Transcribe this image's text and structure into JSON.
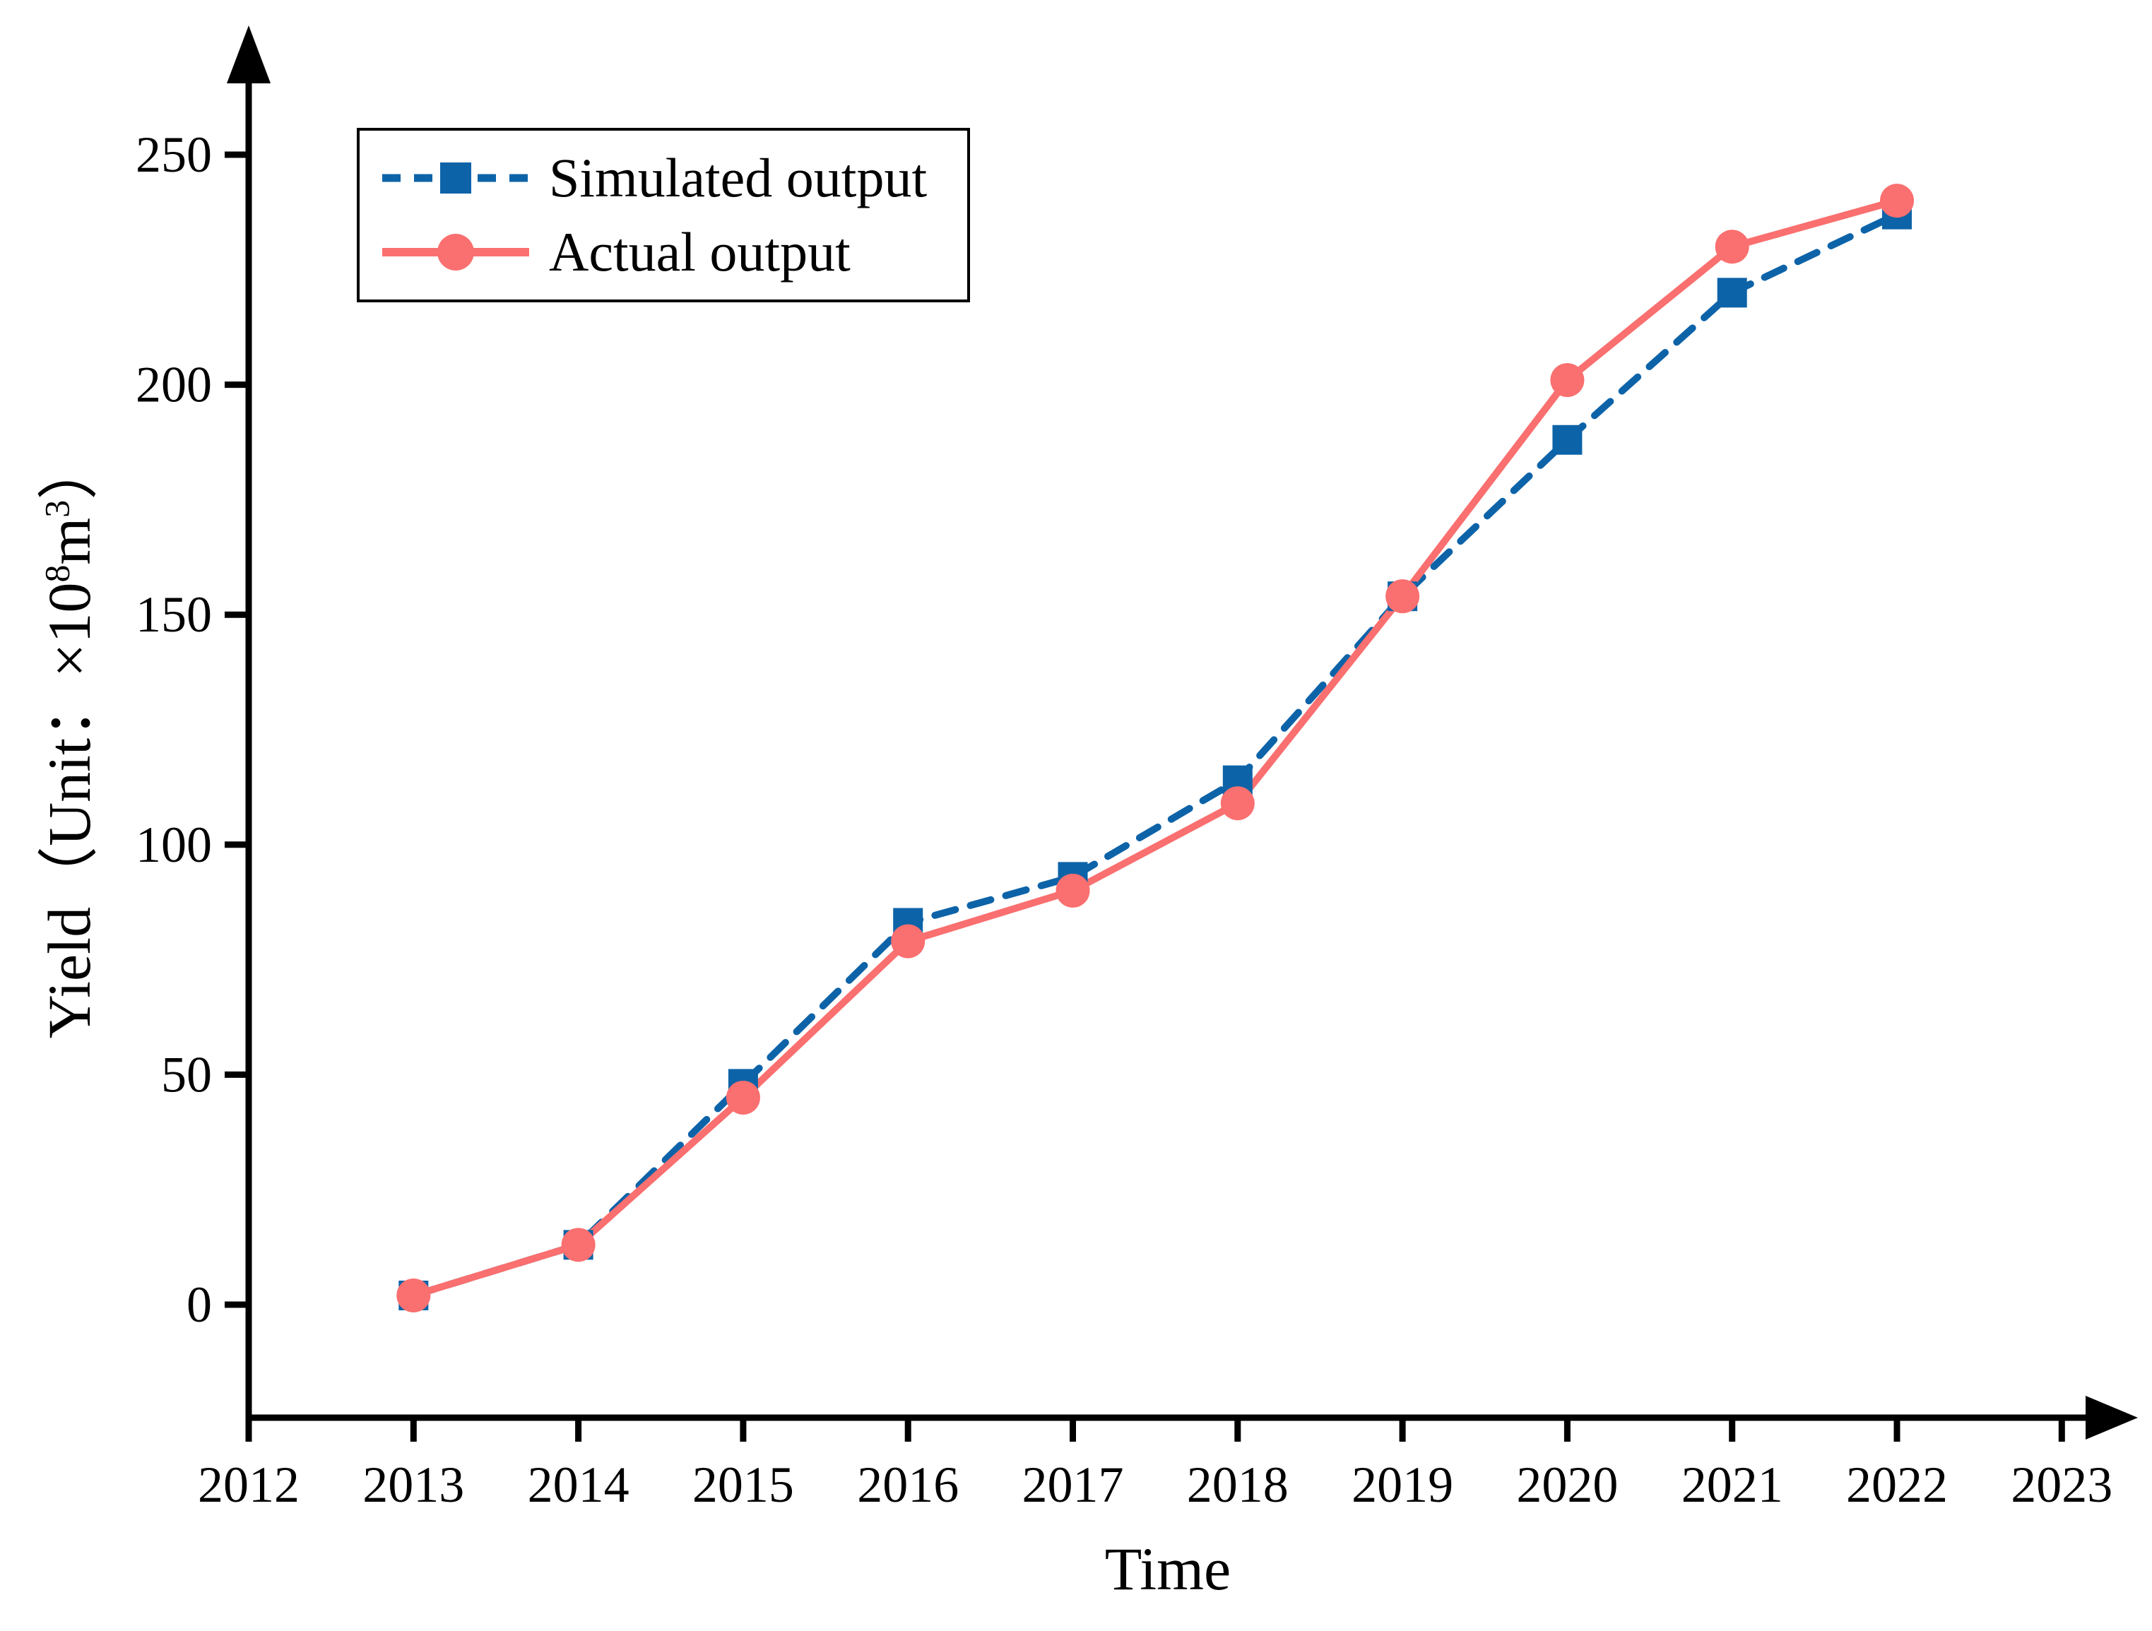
{
  "chart_data": {
    "type": "line",
    "title": "",
    "xlabel": "Time",
    "ylabel": "Yield（Unit：×10⁸m³）",
    "ylabel_parts": {
      "prefix": "Yield（Unit：×10",
      "sup1": "8",
      "mid": "m",
      "sup2": "3",
      "suffix": "）"
    },
    "x": [
      2013,
      2014,
      2015,
      2016,
      2017,
      2018,
      2019,
      2020,
      2021,
      2022
    ],
    "series": [
      {
        "name": "Simulated output",
        "color": "#0d63a8",
        "line_style": "dashed",
        "marker": "square",
        "values": [
          2,
          13,
          48,
          83,
          93,
          114,
          154,
          188,
          220,
          237
        ]
      },
      {
        "name": "Actual output",
        "color": "#fa6f6f",
        "line_style": "solid",
        "marker": "circle",
        "values": [
          2,
          13,
          45,
          79,
          90,
          109,
          154,
          201,
          230,
          240
        ]
      }
    ],
    "x_ticks": [
      2012,
      2013,
      2014,
      2015,
      2016,
      2017,
      2018,
      2019,
      2020,
      2021,
      2022,
      2023
    ],
    "y_ticks": [
      0,
      50,
      100,
      150,
      200,
      250
    ],
    "xlim": [
      2012,
      2023
    ],
    "ylim": [
      0,
      250
    ],
    "grid": false,
    "legend_position": "upper-left",
    "axis_color": "#000000",
    "background_color": "#ffffff"
  },
  "legend": {
    "items": [
      {
        "label": "Simulated output"
      },
      {
        "label": "Actual output"
      }
    ]
  }
}
